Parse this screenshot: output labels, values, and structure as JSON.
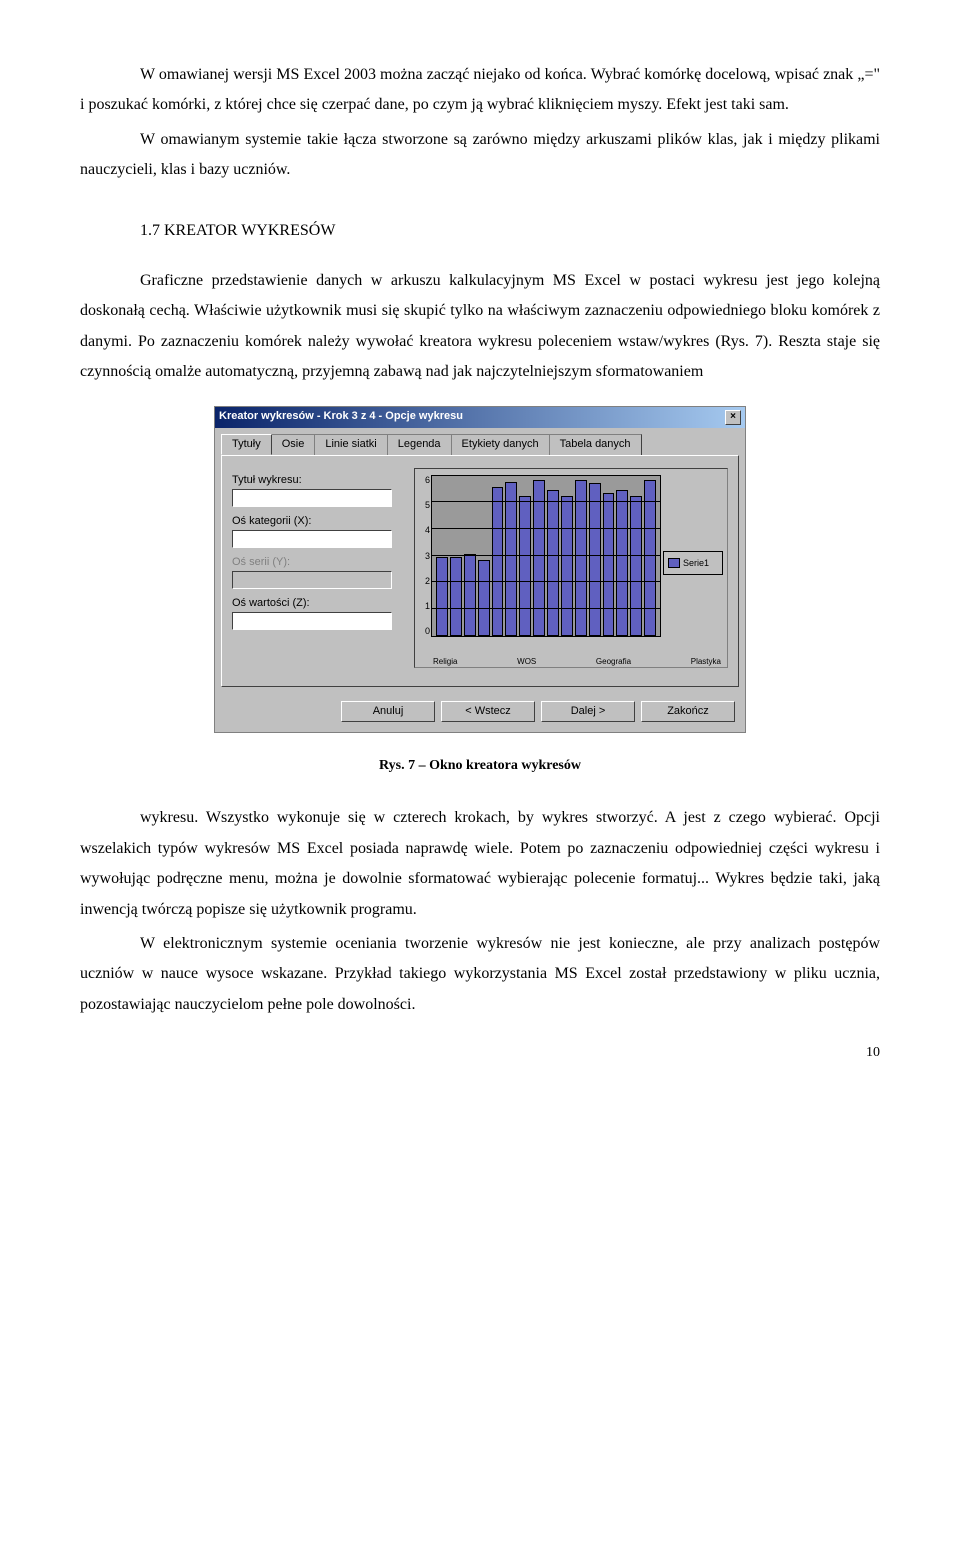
{
  "para1": "W omawianej wersji MS Excel 2003 można zacząć niejako od końca. Wybrać komórkę docelową, wpisać znak „=\" i poszukać komórki, z której chce się czerpać dane, po czym ją wybrać kliknięciem myszy. Efekt jest taki sam.",
  "para2": "W omawianym systemie takie łącza stworzone są zarówno między arkuszami plików klas, jak i między plikami nauczycieli, klas i bazy uczniów.",
  "heading": "1.7    KREATOR WYKRESÓW",
  "para3": "Graficzne przedstawienie danych w arkuszu kalkulacyjnym MS Excel w postaci wykresu jest jego kolejną doskonałą cechą. Właściwie użytkownik musi się skupić tylko na właściwym zaznaczeniu odpowiedniego bloku komórek z danymi. Po zaznaczeniu komórek należy wywołać kreatora wykresu poleceniem wstaw/wykres (Rys. 7). Reszta staje się czynnością omalże automatyczną, przyjemną zabawą nad jak najczytelniejszym sformatowaniem",
  "figcap": "Rys. 7 – Okno kreatora wykresów",
  "para4": "wykresu. Wszystko wykonuje się w czterech krokach, by wykres stworzyć. A jest z czego wybierać. Opcji wszelakich typów wykresów MS Excel posiada naprawdę wiele. Potem po zaznaczeniu odpowiedniej części wykresu i wywołując podręczne menu, można je dowolnie sformatować wybierając polecenie formatuj... Wykres będzie taki, jaką inwencją twórczą popisze się użytkownik programu.",
  "para5": "W elektronicznym systemie oceniania tworzenie wykresów nie jest konieczne, ale przy analizach postępów uczniów w nauce wysoce wskazane. Przykład takiego wykorzystania MS Excel został przedstawiony w pliku ucznia, pozostawiając nauczycielom pełne pole dowolności.",
  "pagenum": "10",
  "dialog": {
    "title": "Kreator wykresów - Krok 3 z 4 - Opcje wykresu",
    "tabs": [
      "Tytuły",
      "Osie",
      "Linie siatki",
      "Legenda",
      "Etykiety danych",
      "Tabela danych"
    ],
    "labels": {
      "title": "Tytuł wykresu:",
      "x": "Oś kategorii (X):",
      "y": "Oś serii (Y):",
      "z": "Oś wartości (Z):",
      "title_u": "T",
      "x_u": "X",
      "z_u": "Z"
    },
    "yticks": [
      "6",
      "5",
      "4",
      "3",
      "2",
      "1",
      "0"
    ],
    "xticks": [
      "Religia",
      "WOS",
      "Geografia",
      "Plastyka"
    ],
    "bars": [
      48,
      48,
      50,
      46,
      92,
      95,
      86,
      96,
      90,
      86,
      96,
      94,
      88,
      90,
      86,
      96
    ],
    "legend": "Serie1",
    "buttons": {
      "cancel": "Anuluj",
      "back": "< Wstecz",
      "next": "Dalej >",
      "finish": "Zakończ",
      "back_u": "W",
      "next_u": "D",
      "finish_u": "Z"
    }
  }
}
